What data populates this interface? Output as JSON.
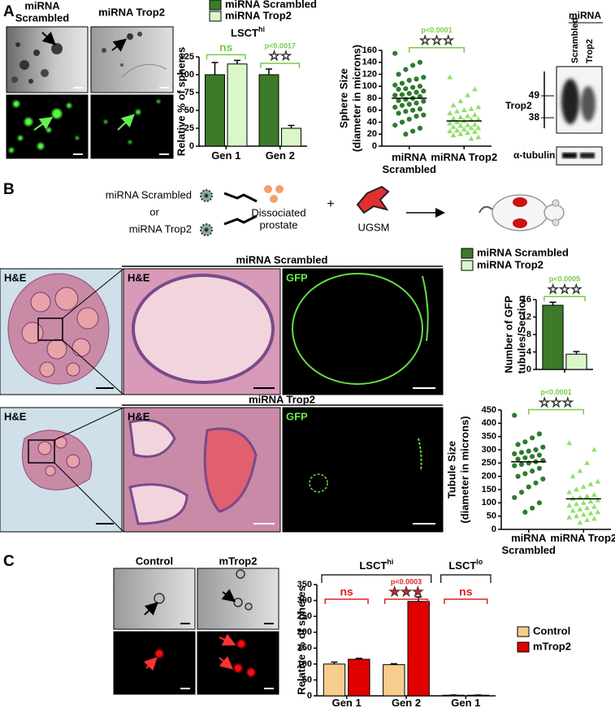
{
  "figure": {
    "panel_a": {
      "label": "A",
      "image_titles": [
        [
          "miRNA",
          "Scrambled"
        ],
        [
          "miRNA Trop2"
        ]
      ],
      "blot": {
        "header": "miRNA",
        "lanes": [
          "Scrambled",
          "Trop2"
        ],
        "band": "Trop2",
        "markers": [
          49,
          38
        ],
        "loading": "α-tubulin"
      }
    },
    "panel_b": {
      "label": "B",
      "schematic": {
        "vector_1": "miRNA Scrambled",
        "or": "or",
        "vector_2": "miRNA Trop2",
        "cells": [
          "Dissociated",
          "prostate"
        ],
        "plus": "+",
        "ugsm": "UGSM"
      },
      "rows": [
        {
          "title": "miRNA Scrambled",
          "images": [
            "H&E",
            "H&E",
            "GFP"
          ]
        },
        {
          "title": "miRNA Trop2",
          "images": [
            "H&E",
            "H&E",
            "GFP"
          ]
        }
      ]
    },
    "panel_c": {
      "label": "C",
      "image_titles": [
        "Control",
        "mTrop2"
      ]
    }
  },
  "chart_data": [
    {
      "type": "bar",
      "title": {
        "base": "LSCT",
        "sup": "hi"
      },
      "ylabel": [
        "Relative % of spheres"
      ],
      "categories": [
        "Gen 1",
        "Gen 2"
      ],
      "series": [
        {
          "name": "miRNA Scrambled",
          "color": "#3d7a2a",
          "values": [
            100,
            100
          ],
          "errors": [
            17,
            8
          ]
        },
        {
          "name": "miRNA Trop2",
          "color": "#d9f7c8",
          "values": [
            115,
            25
          ],
          "errors": [
            5,
            4
          ]
        }
      ],
      "ylim": [
        0,
        125
      ],
      "yticks": [
        0,
        25,
        50,
        75,
        100,
        125
      ],
      "legend": "top",
      "annotations": [
        {
          "categories": [
            0
          ],
          "text": [
            "ns"
          ],
          "color": "#77cc44"
        },
        {
          "categories": [
            1
          ],
          "text": [
            "p<0.0017",
            "☆☆"
          ],
          "color": "#77cc44"
        }
      ]
    },
    {
      "type": "strip",
      "ylabel": [
        "Sphere Size",
        "(diameter in microns)"
      ],
      "categories": [
        "miRNA Scrambled",
        "miRNA Trop2"
      ],
      "series": [
        {
          "color": "#2f7a2f",
          "marker": "circle",
          "mean": 80,
          "values": [
            155,
            140,
            135,
            128,
            120,
            115,
            112,
            110,
            105,
            102,
            100,
            98,
            96,
            95,
            92,
            90,
            88,
            86,
            85,
            83,
            80,
            78,
            76,
            75,
            72,
            70,
            68,
            65,
            62,
            60,
            58,
            55,
            52,
            50,
            45,
            40,
            35,
            30,
            25,
            20
          ]
        },
        {
          "color": "#8fe06a",
          "marker": "triangle",
          "mean": 42,
          "values": [
            115,
            95,
            85,
            75,
            68,
            65,
            62,
            60,
            58,
            55,
            52,
            50,
            48,
            46,
            45,
            44,
            42,
            40,
            38,
            36,
            35,
            34,
            32,
            30,
            30,
            28,
            26,
            25,
            24,
            22,
            20,
            18,
            15,
            12
          ]
        }
      ],
      "ylim": [
        0,
        160
      ],
      "yticks": [
        0,
        20,
        40,
        60,
        80,
        100,
        120,
        140,
        160
      ],
      "annotations": [
        {
          "categories": [
            0,
            1
          ],
          "text": [
            "p<0.0001",
            "☆☆☆"
          ],
          "color": "#77cc44"
        }
      ]
    },
    {
      "type": "bar",
      "ylabel": [
        "Number of GFP",
        "tubules/Section"
      ],
      "categories": [
        null
      ],
      "series": [
        {
          "name": "miRNA Scrambled",
          "color": "#3d7a2a",
          "values": [
            14.7
          ],
          "errors": [
            0.7
          ]
        },
        {
          "name": "miRNA Trop2",
          "color": "#d9f7c8",
          "values": [
            3.5
          ],
          "errors": [
            0.6
          ]
        }
      ],
      "ylim": [
        0,
        16
      ],
      "yticks": [
        0,
        4,
        8,
        12,
        16
      ],
      "legend": "top",
      "annotations": [
        {
          "categories": [
            0
          ],
          "text": [
            "p<0.0005",
            "☆☆☆"
          ],
          "color": "#77cc44"
        }
      ]
    },
    {
      "type": "strip",
      "ylabel": [
        "Tubule Size",
        "(diameter in microns)"
      ],
      "categories": [
        "miRNA Scrambled",
        "miRNA Trop2"
      ],
      "series": [
        {
          "color": "#2f7a2f",
          "marker": "circle",
          "mean": 255,
          "values": [
            430,
            360,
            345,
            330,
            320,
            310,
            300,
            295,
            290,
            285,
            280,
            275,
            270,
            265,
            260,
            255,
            250,
            245,
            240,
            230,
            220,
            210,
            200,
            190,
            175,
            160,
            140,
            120,
            100,
            80,
            65
          ]
        },
        {
          "color": "#8fe06a",
          "marker": "triangle",
          "mean": 115,
          "values": [
            325,
            300,
            250,
            220,
            200,
            180,
            170,
            160,
            150,
            140,
            130,
            125,
            120,
            115,
            110,
            105,
            100,
            95,
            90,
            85,
            80,
            75,
            70,
            65,
            60,
            55,
            50,
            45,
            40,
            35,
            25
          ]
        }
      ],
      "ylim": [
        0,
        450
      ],
      "yticks": [
        0,
        50,
        100,
        150,
        200,
        250,
        300,
        350,
        400,
        450
      ],
      "annotations": [
        {
          "categories": [
            0,
            1
          ],
          "text": [
            "p<0.0001",
            "☆☆☆"
          ],
          "color": "#77cc44"
        }
      ]
    },
    {
      "type": "bar",
      "ylabel": [
        "Relative % of spheres"
      ],
      "categories": [
        "Gen 1",
        "Gen 2",
        "Gen 1"
      ],
      "series": [
        {
          "name": "Control",
          "color": "#f7cd8e",
          "values": [
            100,
            98,
            2
          ],
          "errors": [
            6,
            3,
            0.5
          ]
        },
        {
          "name": "mTrop2",
          "color": "#e00000",
          "values": [
            115,
            297,
            2
          ],
          "errors": [
            3,
            14,
            0.5
          ]
        }
      ],
      "ylim": [
        0,
        350
      ],
      "yticks": [
        0,
        50,
        100,
        150,
        200,
        250,
        300,
        350
      ],
      "legend": "right",
      "groups": [
        {
          "label": {
            "base": "LSCT",
            "sup": "hi"
          },
          "categories": [
            0,
            1
          ]
        },
        {
          "label": {
            "base": "LSCT",
            "sup": "lo"
          },
          "categories": [
            2
          ]
        }
      ],
      "annotations": [
        {
          "categories": [
            0
          ],
          "text": [
            "ns"
          ],
          "color": "#dd2222"
        },
        {
          "categories": [
            1
          ],
          "text": [
            "p<0.0003",
            "★★★"
          ],
          "color": "#dd2222"
        },
        {
          "categories": [
            2
          ],
          "text": [
            "ns"
          ],
          "color": "#dd2222"
        }
      ]
    }
  ]
}
